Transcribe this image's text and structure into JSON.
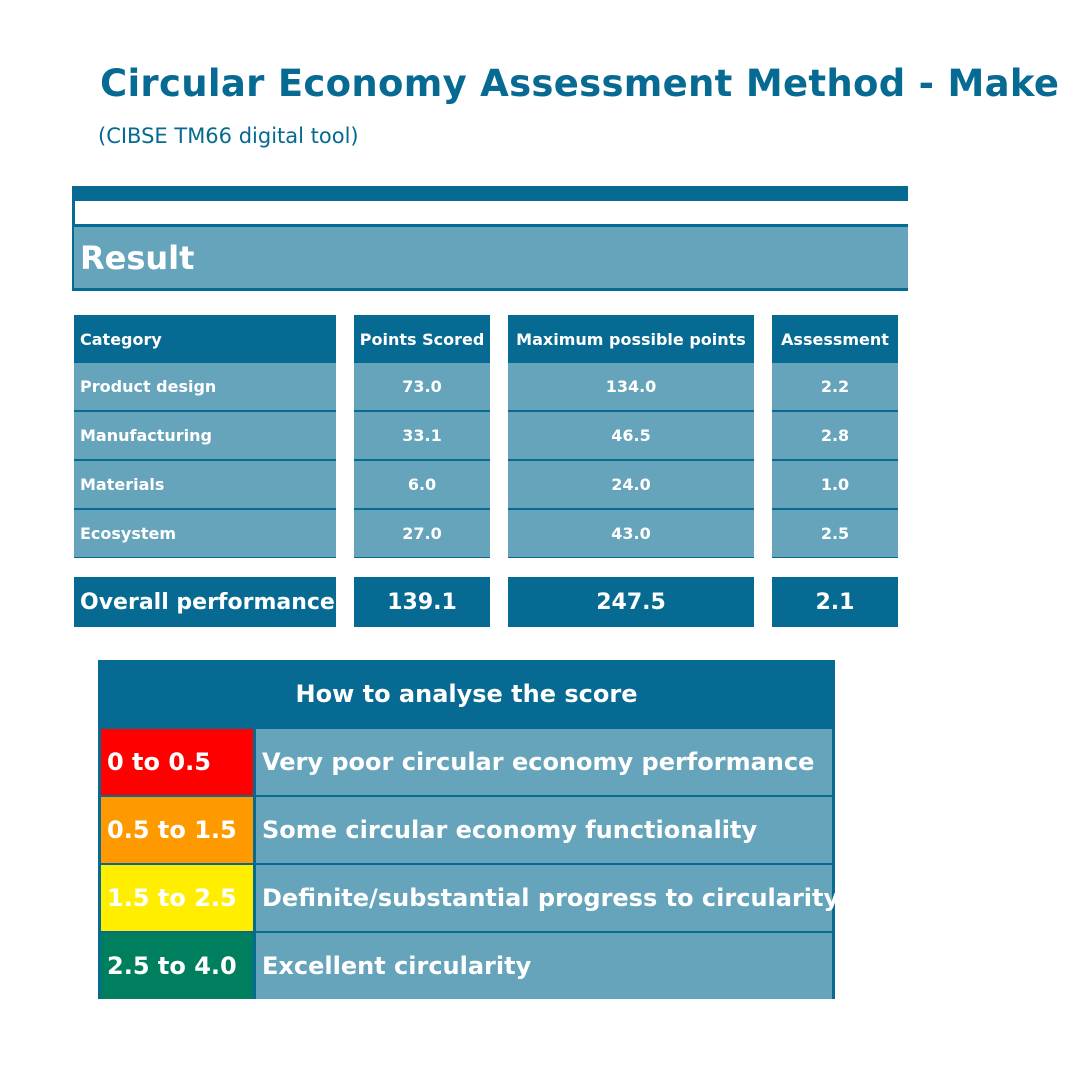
{
  "header": {
    "title": "Circular Economy Assessment Method - Make",
    "subtitle": "(CIBSE TM66 digital tool)"
  },
  "result": {
    "label": "Result"
  },
  "table": {
    "columns": [
      "Category",
      "Points Scored",
      "Maximum possible points",
      "Assessment"
    ],
    "rows": [
      {
        "category": "Product design",
        "points": "73.0",
        "max": "134.0",
        "assessment": "2.2"
      },
      {
        "category": "Manufacturing",
        "points": "33.1",
        "max": "46.5",
        "assessment": "2.8"
      },
      {
        "category": "Materials",
        "points": "6.0",
        "max": "24.0",
        "assessment": "1.0"
      },
      {
        "category": "Ecosystem",
        "points": "27.0",
        "max": "43.0",
        "assessment": "2.5"
      }
    ],
    "total": {
      "category": "Overall performance",
      "points": "139.1",
      "max": "247.5",
      "assessment": "2.1"
    }
  },
  "legend": {
    "title": "How to analyse the score",
    "items": [
      {
        "range": "0 to 0.5",
        "description": "Very poor circular economy performance",
        "color": "#ff0000"
      },
      {
        "range": "0.5 to 1.5",
        "description": "Some circular economy functionality",
        "color": "#ff9900"
      },
      {
        "range": "1.5 to 2.5",
        "description": "Definite/substantial progress to circularity",
        "color": "#ffee00"
      },
      {
        "range": "2.5 to 4.0",
        "description": "Excellent circularity",
        "color": "#007f5f"
      }
    ]
  },
  "colors": {
    "primary": "#066a92",
    "cell": "#66a4bc",
    "text": "#ffffff"
  }
}
